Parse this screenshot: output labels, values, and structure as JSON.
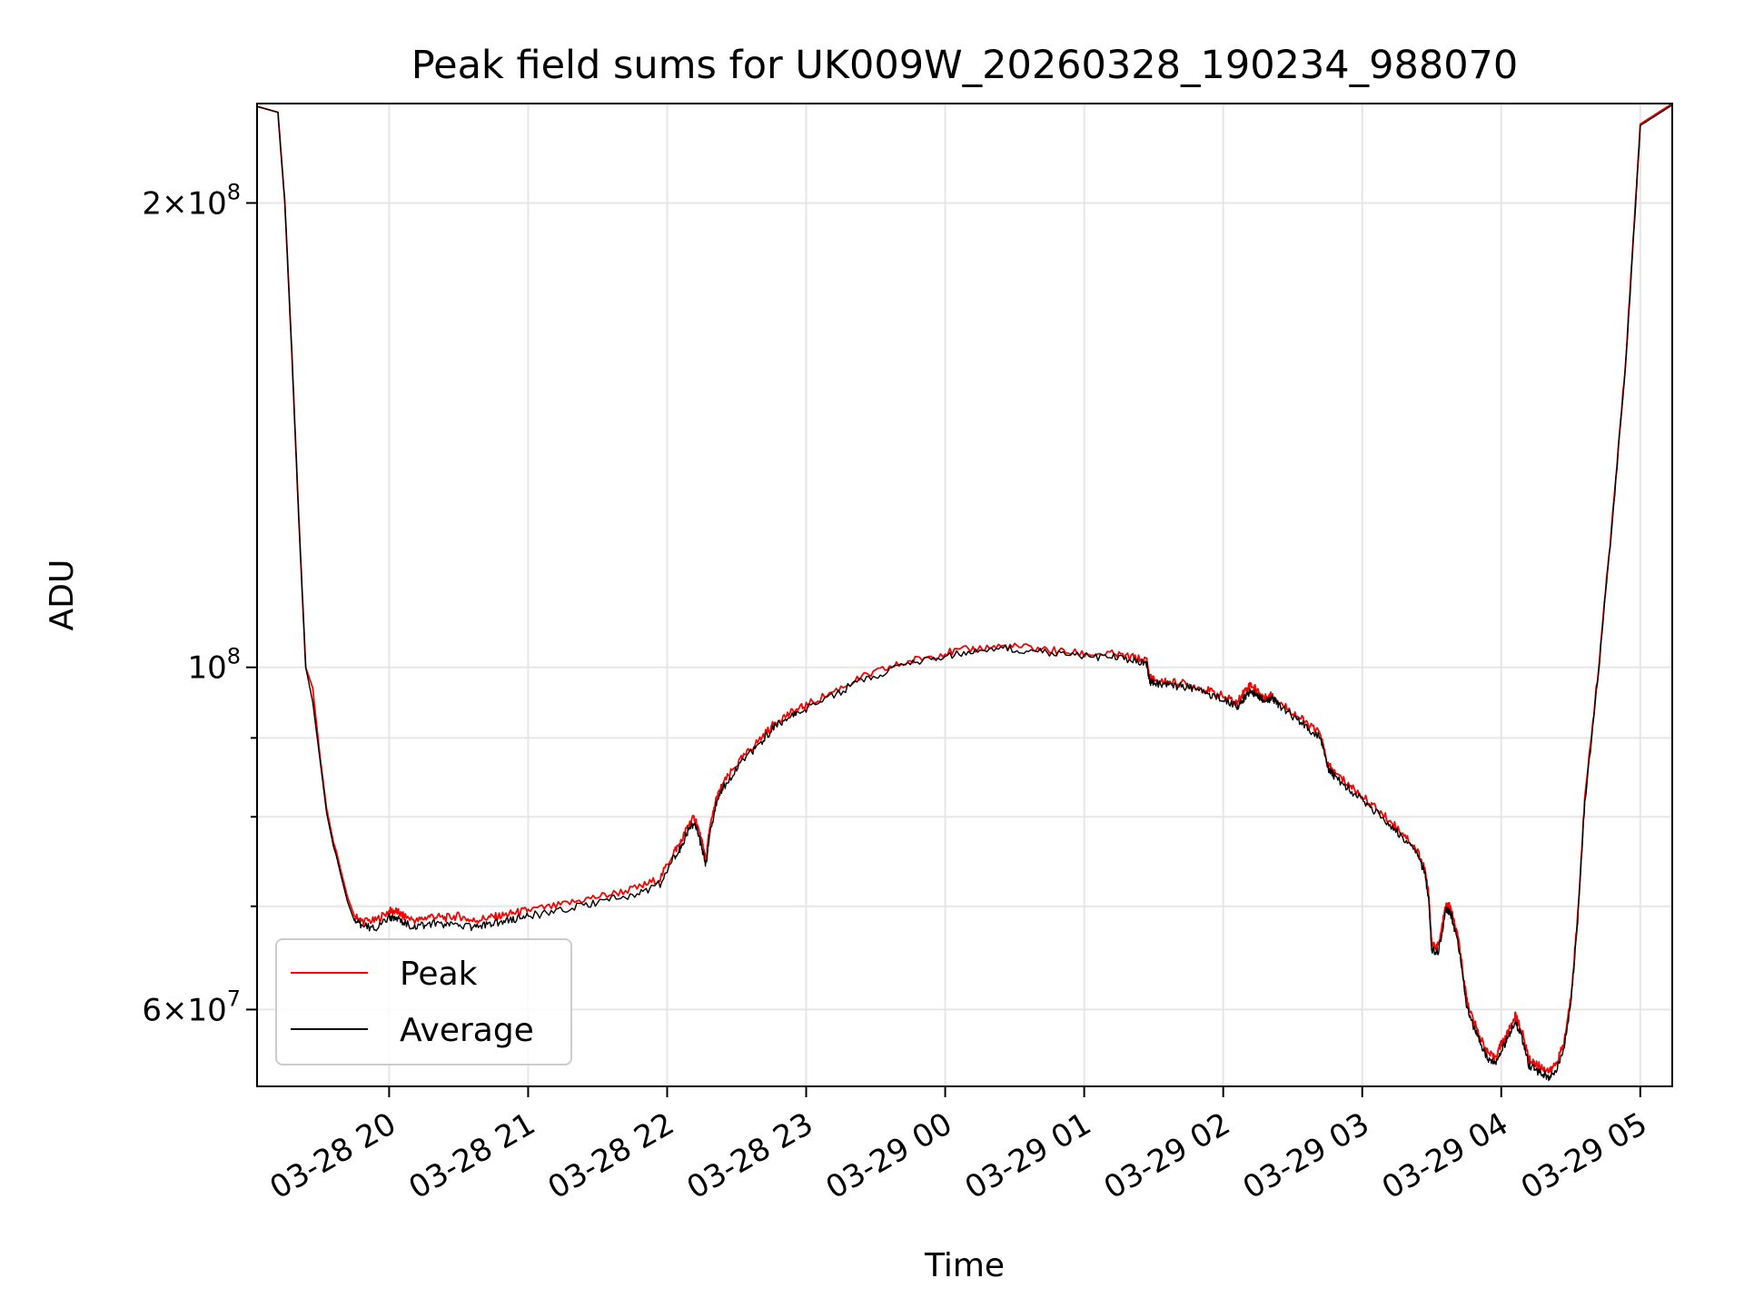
{
  "chart_data": {
    "type": "line",
    "title": "Peak field sums for UK009W_20260328_190234_988070",
    "xlabel": "Time",
    "ylabel": "ADU",
    "yscale": "log",
    "xlim": [
      19.05,
      29.23
    ],
    "ylim": [
      53500000,
      232000000
    ],
    "grid": true,
    "legend_position": "lower-left",
    "x_tick_labels": [
      "03-28 20",
      "03-28 21",
      "03-28 22",
      "03-28 23",
      "03-29 00",
      "03-29 01",
      "03-29 02",
      "03-29 03",
      "03-29 04",
      "03-29 05"
    ],
    "x_tick_values": [
      20,
      21,
      22,
      23,
      24,
      25,
      26,
      27,
      28,
      29
    ],
    "y_tick_labels": [
      {
        "mant": "6",
        "exp": "7",
        "value": 60000000,
        "style": "sci"
      },
      {
        "mant": "",
        "exp": "8",
        "value": 100000000,
        "style": "pow"
      },
      {
        "mant": "2",
        "exp": "8",
        "value": 200000000,
        "style": "sci"
      }
    ],
    "y_minor_ticks": [
      70000000,
      80000000,
      90000000
    ],
    "series": [
      {
        "name": "Peak",
        "color": "#ff0000",
        "x": [
          19.05,
          19.2,
          19.25,
          19.3,
          19.35,
          19.4,
          19.45,
          19.5,
          19.55,
          19.6,
          19.62,
          19.65,
          19.7,
          19.75,
          19.8,
          19.9,
          20.0,
          20.05,
          20.1,
          20.2,
          20.3,
          20.4,
          20.5,
          20.6,
          20.7,
          20.8,
          20.9,
          21.0,
          21.2,
          21.4,
          21.6,
          21.8,
          21.95,
          22.05,
          22.1,
          22.15,
          22.2,
          22.25,
          22.28,
          22.3,
          22.35,
          22.4,
          22.5,
          22.6,
          22.7,
          22.8,
          22.9,
          23.0,
          23.2,
          23.4,
          23.6,
          23.8,
          24.0,
          24.2,
          24.4,
          24.6,
          24.8,
          25.0,
          25.2,
          25.35,
          25.45,
          25.47,
          25.5,
          25.6,
          25.7,
          25.8,
          25.9,
          26.0,
          26.1,
          26.15,
          26.2,
          26.25,
          26.3,
          26.35,
          26.4,
          26.5,
          26.6,
          26.7,
          26.75,
          26.8,
          26.9,
          27.0,
          27.1,
          27.2,
          27.3,
          27.4,
          27.45,
          27.48,
          27.5,
          27.55,
          27.6,
          27.63,
          27.65,
          27.7,
          27.75,
          27.8,
          27.85,
          27.9,
          27.95,
          28.0,
          28.05,
          28.1,
          28.15,
          28.2,
          28.25,
          28.3,
          28.35,
          28.4,
          28.45,
          28.5,
          28.55,
          28.6,
          28.7,
          28.8,
          28.9,
          29.0,
          29.23
        ],
        "values": [
          231000000,
          229000000,
          200000000,
          160000000,
          125000000,
          100000000,
          97000000,
          88000000,
          81000000,
          77000000,
          76000000,
          74000000,
          71000000,
          69000000,
          68500000,
          68500000,
          69500000,
          69500000,
          69000000,
          68500000,
          69000000,
          68800000,
          69000000,
          68500000,
          68800000,
          69000000,
          69300000,
          69600000,
          70000000,
          70700000,
          71300000,
          72000000,
          73000000,
          76000000,
          77000000,
          79000000,
          80000000,
          77000000,
          75000000,
          78000000,
          82000000,
          84000000,
          86500000,
          88500000,
          90500000,
          92500000,
          93500000,
          94500000,
          96500000,
          98500000,
          100000000,
          101200000,
          102200000,
          102800000,
          103200000,
          103000000,
          102500000,
          102000000,
          102000000,
          101500000,
          101000000,
          98500000,
          98200000,
          97800000,
          97700000,
          97200000,
          96500000,
          95800000,
          94800000,
          96500000,
          97500000,
          96500000,
          95500000,
          96000000,
          95000000,
          93500000,
          92000000,
          90500000,
          86500000,
          85500000,
          84000000,
          82500000,
          81000000,
          79500000,
          78000000,
          76000000,
          74000000,
          71000000,
          66000000,
          66000000,
          70000000,
          70000000,
          69000000,
          66000000,
          61000000,
          59000000,
          57500000,
          56300000,
          55800000,
          57000000,
          58000000,
          59500000,
          58000000,
          55700000,
          55300000,
          55000000,
          54700000,
          55500000,
          57000000,
          61000000,
          69000000,
          82000000,
          100000000,
          125000000,
          160000000,
          225000000,
          232000000
        ]
      },
      {
        "name": "Average",
        "color": "#000000",
        "x": [
          19.05,
          19.2,
          19.25,
          19.3,
          19.35,
          19.4,
          19.45,
          19.5,
          19.55,
          19.6,
          19.62,
          19.65,
          19.7,
          19.75,
          19.8,
          19.9,
          20.0,
          20.05,
          20.1,
          20.2,
          20.3,
          20.4,
          20.5,
          20.6,
          20.7,
          20.8,
          20.9,
          21.0,
          21.2,
          21.4,
          21.6,
          21.8,
          21.95,
          22.05,
          22.1,
          22.15,
          22.2,
          22.25,
          22.28,
          22.3,
          22.35,
          22.4,
          22.5,
          22.6,
          22.7,
          22.8,
          22.9,
          23.0,
          23.2,
          23.4,
          23.6,
          23.8,
          24.0,
          24.2,
          24.4,
          24.6,
          24.8,
          25.0,
          25.2,
          25.35,
          25.45,
          25.47,
          25.5,
          25.6,
          25.7,
          25.8,
          25.9,
          26.0,
          26.1,
          26.15,
          26.2,
          26.25,
          26.3,
          26.35,
          26.4,
          26.5,
          26.6,
          26.7,
          26.75,
          26.8,
          26.9,
          27.0,
          27.1,
          27.2,
          27.3,
          27.4,
          27.45,
          27.48,
          27.5,
          27.55,
          27.6,
          27.63,
          27.65,
          27.7,
          27.75,
          27.8,
          27.85,
          27.9,
          27.95,
          28.0,
          28.05,
          28.1,
          28.15,
          28.2,
          28.25,
          28.3,
          28.35,
          28.4,
          28.45,
          28.5,
          28.55,
          28.6,
          28.7,
          28.8,
          28.9,
          29.0,
          29.23
        ],
        "values": [
          231000000,
          229000000,
          200000000,
          160000000,
          125000000,
          100000000,
          95000000,
          87500000,
          80500000,
          76500000,
          75500000,
          73500000,
          70500000,
          68500000,
          68000000,
          67800000,
          68800000,
          68800000,
          68300000,
          67900000,
          68200000,
          68000000,
          68200000,
          67800000,
          68100000,
          68400000,
          68700000,
          69000000,
          69400000,
          70100000,
          70700000,
          71400000,
          72400000,
          75400000,
          76400000,
          78400000,
          79400000,
          76400000,
          74400000,
          77400000,
          81400000,
          83500000,
          86000000,
          88000000,
          90000000,
          92000000,
          93000000,
          94000000,
          96000000,
          98100000,
          99600000,
          100800000,
          101800000,
          102400000,
          102800000,
          102600000,
          102100000,
          101600000,
          101600000,
          101100000,
          100500000,
          97800000,
          97700000,
          97400000,
          97200000,
          96800000,
          96100000,
          95300000,
          94300000,
          95500000,
          96500000,
          95800000,
          95000000,
          95500000,
          94500000,
          93000000,
          91500000,
          90000000,
          86000000,
          85000000,
          83500000,
          82000000,
          80500000,
          79000000,
          77500000,
          75500000,
          73500000,
          70500000,
          65500000,
          65500000,
          69500000,
          69500000,
          68500000,
          65500000,
          60500000,
          58500000,
          57000000,
          55800000,
          55300000,
          56500000,
          57500000,
          59000000,
          57500000,
          55200000,
          54800000,
          54500000,
          54200000,
          55000000,
          56500000,
          60500000,
          68500000,
          81500000,
          99500000,
          124500000,
          159500000,
          224500000,
          231500000
        ]
      }
    ]
  }
}
